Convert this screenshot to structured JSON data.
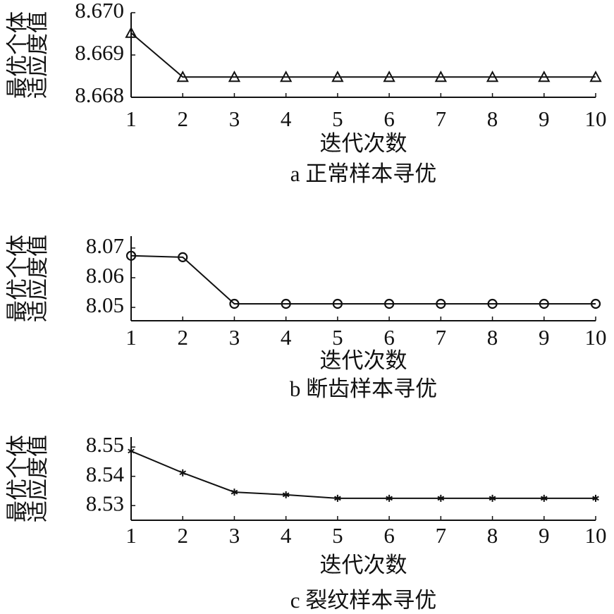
{
  "chart_data": [
    {
      "type": "line",
      "marker": "triangle",
      "color": "#111111",
      "ylabel": [
        "最优个体",
        "适应度值"
      ],
      "xlabel": "迭代次数",
      "caption": "a 正常样本寻优",
      "x": [
        1,
        2,
        3,
        4,
        5,
        6,
        7,
        8,
        9,
        10
      ],
      "values": [
        8.66952,
        8.66848,
        8.66848,
        8.66848,
        8.66848,
        8.66848,
        8.66848,
        8.66848,
        8.66848,
        8.66848
      ],
      "xlim": [
        1,
        10
      ],
      "xticks": [
        1,
        2,
        3,
        4,
        5,
        6,
        7,
        8,
        9,
        10
      ],
      "ylim": [
        8.668,
        8.67
      ],
      "yticks": [
        8.668,
        8.669,
        {
          "value": 8.67,
          "label": "8.670"
        }
      ]
    },
    {
      "type": "line",
      "marker": "circle",
      "color": "#111111",
      "ylabel": [
        "最优个体",
        "适应度值"
      ],
      "xlabel": "迭代次数",
      "caption": "b 断齿样本寻优",
      "x": [
        1,
        2,
        3,
        4,
        5,
        6,
        7,
        8,
        9,
        10
      ],
      "values": [
        8.0674,
        8.0669,
        8.0512,
        8.0512,
        8.0512,
        8.0512,
        8.0512,
        8.0512,
        8.0512,
        8.0512
      ],
      "xlim": [
        1,
        10
      ],
      "xticks": [
        1,
        2,
        3,
        4,
        5,
        6,
        7,
        8,
        9,
        10
      ],
      "ylim": [
        8.0455,
        8.074
      ],
      "yticks": [
        8.05,
        8.06,
        8.07
      ]
    },
    {
      "type": "line",
      "marker": "star",
      "color": "#111111",
      "ylabel": [
        "最优个体",
        "适应度值"
      ],
      "xlabel": "迭代次数",
      "caption": "c 裂纹样本寻优",
      "x": [
        1,
        2,
        3,
        4,
        5,
        6,
        7,
        8,
        9,
        10
      ],
      "values": [
        8.5486,
        8.5412,
        8.5346,
        8.5337,
        8.5325,
        8.5325,
        8.5325,
        8.5325,
        8.5325,
        8.5325
      ],
      "xlim": [
        1,
        10
      ],
      "xticks": [
        1,
        2,
        3,
        4,
        5,
        6,
        7,
        8,
        9,
        10
      ],
      "ylim": [
        8.525,
        8.5534
      ],
      "yticks": [
        8.53,
        8.54,
        8.55
      ]
    }
  ]
}
